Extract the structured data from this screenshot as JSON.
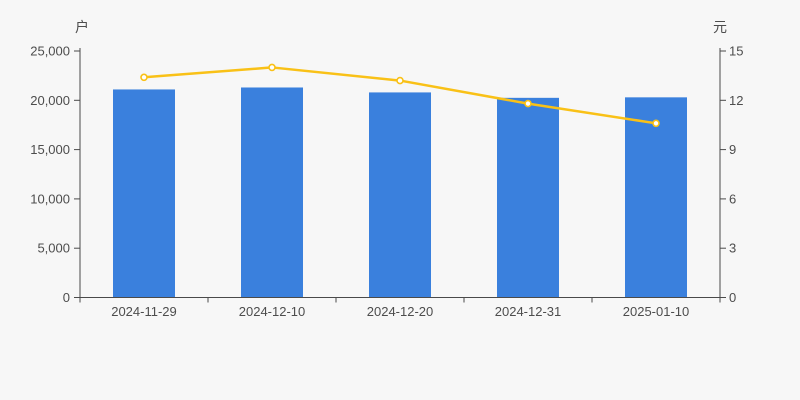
{
  "background": "#f7f7f7",
  "chart_data": {
    "type": "bar",
    "subtype": "bar-line-combo-dual-axis",
    "title": "",
    "legend_position": "none",
    "grid": "off",
    "categories": [
      "2024-11-29",
      "2024-12-10",
      "2024-12-20",
      "2024-12-31",
      "2025-01-10"
    ],
    "series": [
      {
        "type": "bar",
        "axis": "left",
        "color": "#3a80dd",
        "values": [
          21100,
          21300,
          20800,
          20250,
          20300
        ]
      },
      {
        "type": "line",
        "axis": "right",
        "color": "#f9c117",
        "marker": "circle-white-fill",
        "values": [
          13.4,
          14.0,
          13.2,
          11.8,
          10.6
        ]
      }
    ],
    "left_axis": {
      "label": "户",
      "min": 0,
      "max": 25000,
      "step": 5000,
      "tick_labels": [
        "0",
        "5,000",
        "10,000",
        "15,000",
        "20,000",
        "25,000"
      ]
    },
    "right_axis": {
      "label": "元",
      "min": 0,
      "max": 15,
      "step": 3,
      "tick_labels": [
        "0",
        "3",
        "6",
        "9",
        "12",
        "15"
      ]
    },
    "text_color": "#4d4d4d",
    "axis_color": "#4a4a4a"
  }
}
